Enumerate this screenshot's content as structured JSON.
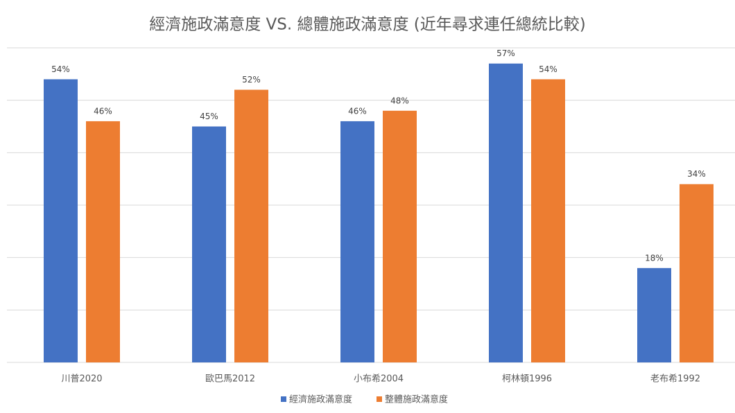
{
  "chart_data": {
    "type": "bar",
    "title": "經濟施政滿意度 VS. 總體施政滿意度 (近年尋求連任總統比較)",
    "categories": [
      "川普2020",
      "歐巴馬2012",
      "小布希2004",
      "柯林頓1996",
      "老布希1992"
    ],
    "series": [
      {
        "name": "經濟施政滿意度",
        "color": "#4472c4",
        "values": [
          54,
          45,
          46,
          57,
          18
        ],
        "value_labels": [
          "54%",
          "45%",
          "46%",
          "57%",
          "18%"
        ]
      },
      {
        "name": "整體施政滿意度",
        "color": "#ed7d31",
        "values": [
          46,
          52,
          48,
          54,
          34
        ],
        "value_labels": [
          "46%",
          "52%",
          "48%",
          "54%",
          "34%"
        ]
      }
    ],
    "ylim": [
      0,
      60
    ],
    "yticks": [
      0,
      10,
      20,
      30,
      40,
      50,
      60
    ],
    "grid": true,
    "legend": "bottom"
  }
}
